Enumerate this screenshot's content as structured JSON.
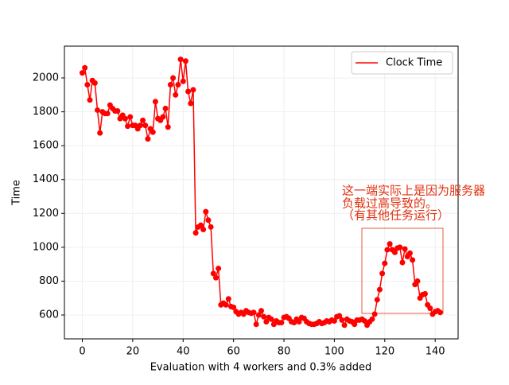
{
  "chart_data": {
    "type": "line",
    "xlabel": "Evaluation with 4 workers and 0.3% added",
    "ylabel": "Time",
    "annotation": [
      "这一端实际上是因为服务器",
      "负载过高导致的。",
      "（有其他任务运行）"
    ],
    "legend": "upper right",
    "grid": true,
    "xlim": [
      -7.1,
      149.1
    ],
    "ylim": [
      459,
      2188
    ],
    "xticks": [
      0,
      20,
      40,
      60,
      80,
      100,
      120,
      140
    ],
    "yticks": [
      600,
      800,
      1000,
      1200,
      1400,
      1600,
      1800,
      2000
    ],
    "x": [
      0,
      1,
      2,
      3,
      4,
      5,
      6,
      7,
      8,
      9,
      10,
      11,
      12,
      13,
      14,
      15,
      16,
      17,
      18,
      19,
      20,
      21,
      22,
      23,
      24,
      25,
      26,
      27,
      28,
      29,
      30,
      31,
      32,
      33,
      34,
      35,
      36,
      37,
      38,
      39,
      40,
      41,
      42,
      43,
      44,
      45,
      46,
      47,
      48,
      49,
      50,
      51,
      52,
      53,
      54,
      55,
      56,
      57,
      58,
      59,
      60,
      61,
      62,
      63,
      64,
      65,
      66,
      67,
      68,
      69,
      70,
      71,
      72,
      73,
      74,
      75,
      76,
      77,
      78,
      79,
      80,
      81,
      82,
      83,
      84,
      85,
      86,
      87,
      88,
      89,
      90,
      91,
      92,
      93,
      94,
      95,
      96,
      97,
      98,
      99,
      100,
      101,
      102,
      103,
      104,
      105,
      106,
      107,
      108,
      109,
      110,
      111,
      112,
      113,
      114,
      115,
      116,
      117,
      118,
      119,
      120,
      121,
      122,
      123,
      124,
      125,
      126,
      127,
      128,
      129,
      130,
      131,
      132,
      133,
      134,
      135,
      136,
      137,
      138,
      139,
      140,
      141,
      142
    ],
    "series": [
      {
        "name": "Clock Time",
        "color": "#ff0000",
        "values": [
          2030,
          2060,
          1960,
          1870,
          1985,
          1970,
          1810,
          1675,
          1800,
          1790,
          1790,
          1840,
          1820,
          1805,
          1805,
          1760,
          1780,
          1760,
          1715,
          1770,
          1720,
          1720,
          1700,
          1720,
          1750,
          1720,
          1640,
          1700,
          1680,
          1860,
          1760,
          1750,
          1770,
          1820,
          1710,
          1960,
          2000,
          1900,
          1960,
          2110,
          1980,
          2100,
          1920,
          1850,
          1930,
          1085,
          1120,
          1130,
          1105,
          1210,
          1160,
          1120,
          845,
          820,
          875,
          660,
          670,
          660,
          695,
          650,
          645,
          620,
          605,
          615,
          605,
          625,
          615,
          610,
          615,
          545,
          600,
          625,
          590,
          560,
          585,
          575,
          545,
          565,
          555,
          555,
          585,
          590,
          580,
          560,
          555,
          575,
          560,
          585,
          580,
          560,
          550,
          545,
          545,
          550,
          560,
          550,
          555,
          565,
          560,
          570,
          565,
          590,
          595,
          570,
          540,
          575,
          565,
          560,
          545,
          570,
          570,
          575,
          565,
          540,
          560,
          575,
          605,
          690,
          750,
          845,
          905,
          985,
          1020,
          985,
          970,
          995,
          1000,
          910,
          990,
          945,
          965,
          925,
          780,
          800,
          700,
          720,
          725,
          660,
          640,
          605,
          620,
          625,
          615
        ]
      }
    ]
  }
}
